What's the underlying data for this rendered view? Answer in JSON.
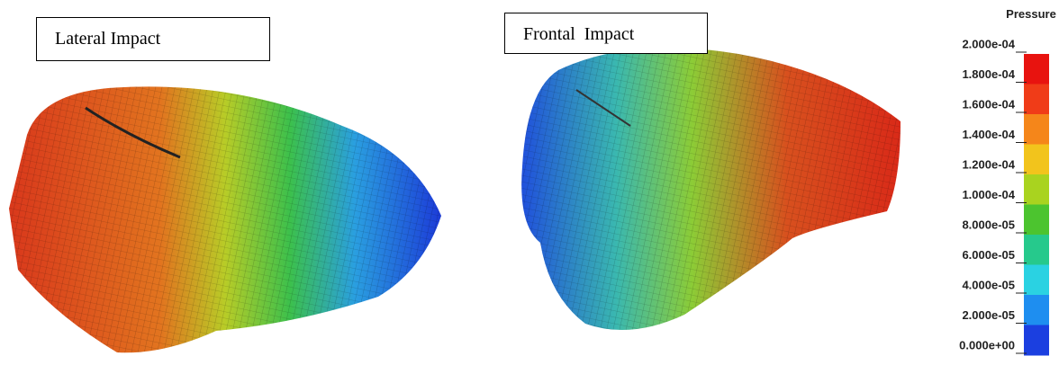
{
  "panels": [
    {
      "label": "Lateral Impact"
    },
    {
      "label": "Frontal  Impact"
    }
  ],
  "legend": {
    "title": "Pressure",
    "ticks": [
      "2.000e-04",
      "1.800e-04",
      "1.600e-04",
      "1.400e-04",
      "1.200e-04",
      "1.000e-04",
      "8.000e-05",
      "6.000e-05",
      "4.000e-05",
      "2.000e-05",
      "0.000e+00"
    ],
    "colors": [
      "#e8130f",
      "#f03c18",
      "#f5861a",
      "#f2c41c",
      "#a9d31f",
      "#4cc42f",
      "#26c98c",
      "#2ad2e2",
      "#1e8ef0",
      "#1b3fe0"
    ]
  }
}
